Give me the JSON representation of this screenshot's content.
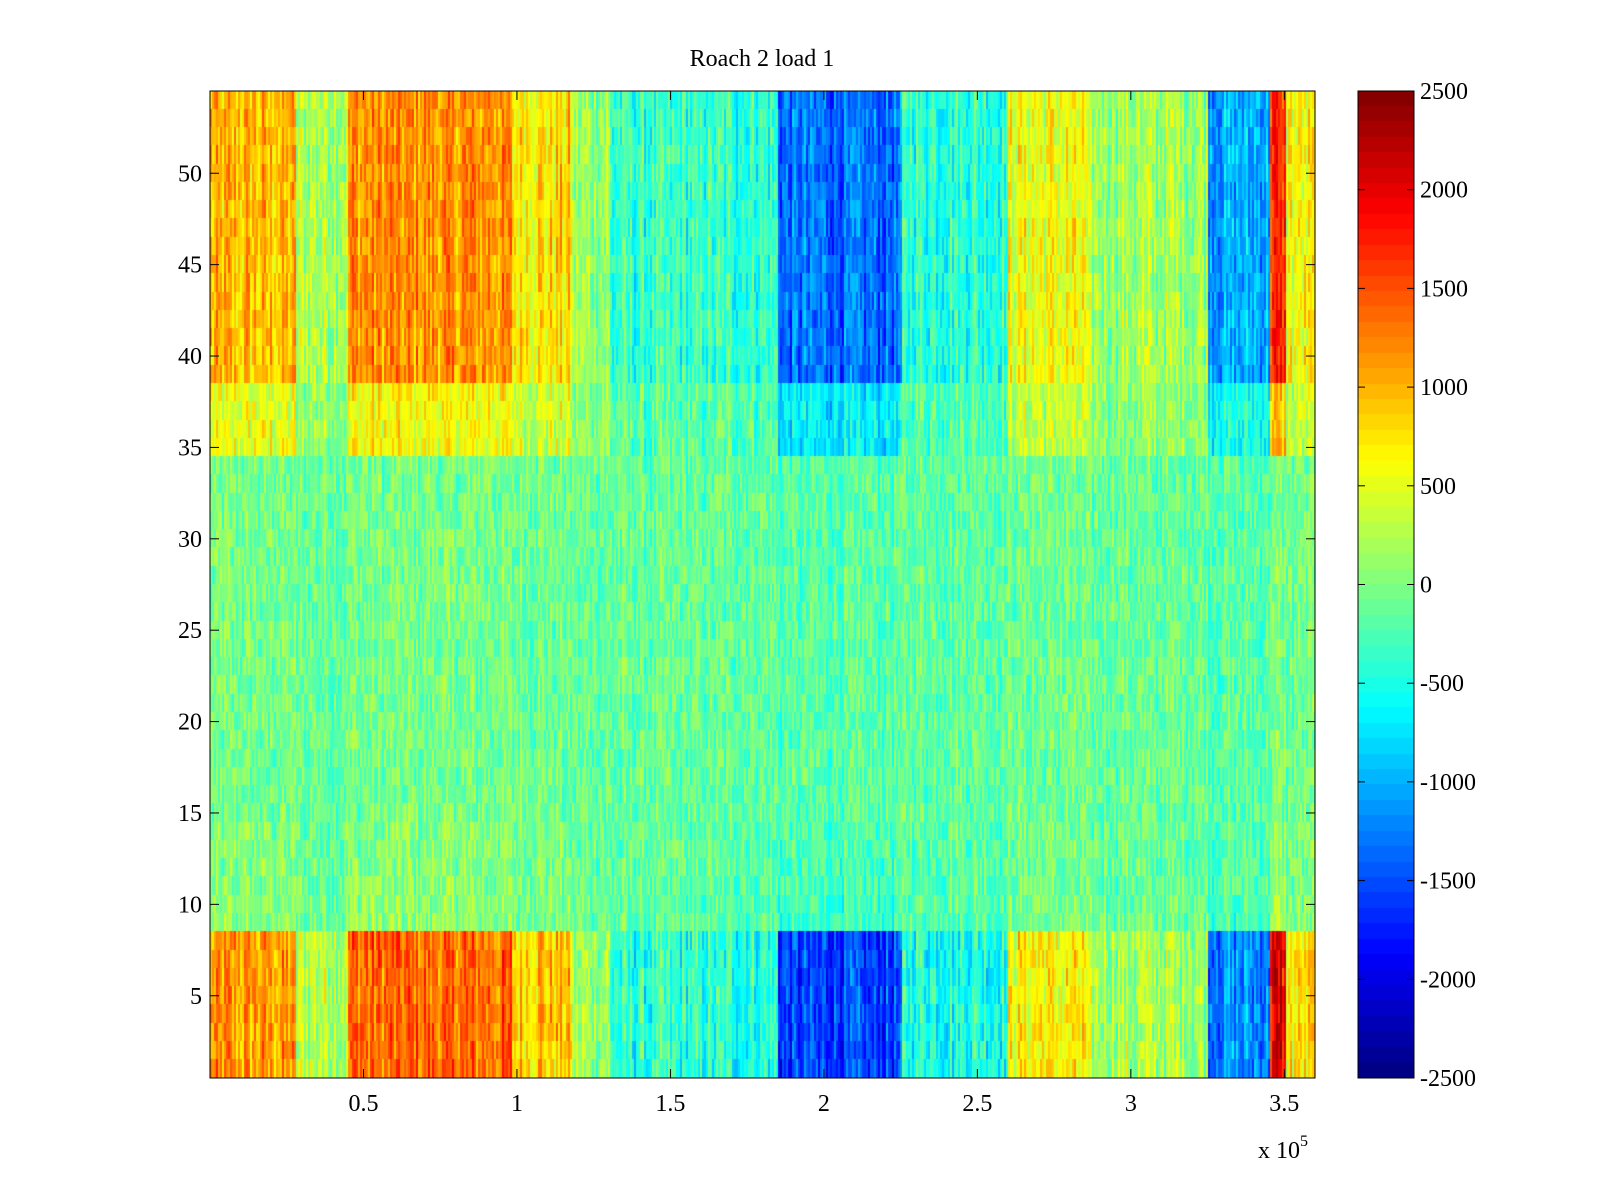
{
  "chart_data": {
    "type": "heatmap",
    "title": "Roach 2 load 1",
    "xlabel": "",
    "ylabel": "",
    "x_multiplier_label": "x 10",
    "x_multiplier_exponent": "5",
    "xlim": [
      0,
      360000
    ],
    "ylim": [
      0.5,
      54.5
    ],
    "x_ticks": [
      50000,
      100000,
      150000,
      200000,
      250000,
      300000,
      350000
    ],
    "x_tick_labels": [
      "0.5",
      "1",
      "1.5",
      "2",
      "2.5",
      "3",
      "3.5"
    ],
    "y_ticks": [
      5,
      10,
      15,
      20,
      25,
      30,
      35,
      40,
      45,
      50
    ],
    "y_tick_labels": [
      "5",
      "10",
      "15",
      "20",
      "25",
      "30",
      "35",
      "40",
      "45",
      "50"
    ],
    "colorbar": {
      "colormap": "jet",
      "clim": [
        -2500,
        2500
      ],
      "ticks": [
        2500,
        2000,
        1500,
        1000,
        500,
        0,
        -500,
        -1000,
        -1500,
        -2000,
        -2500
      ],
      "tick_labels": [
        "2500",
        "2000",
        "1500",
        "1000",
        "500",
        "0",
        "-500",
        "-1000",
        "-1500",
        "-2000",
        "-2500"
      ]
    },
    "rows": 54,
    "column_bands": [
      {
        "x_from": 0,
        "x_to": 28000,
        "value": 1100
      },
      {
        "x_from": 28000,
        "x_to": 45000,
        "value": 300
      },
      {
        "x_from": 45000,
        "x_to": 98000,
        "value": 1350
      },
      {
        "x_from": 98000,
        "x_to": 118000,
        "value": 900
      },
      {
        "x_from": 118000,
        "x_to": 130000,
        "value": 150
      },
      {
        "x_from": 130000,
        "x_to": 185000,
        "value": -450
      },
      {
        "x_from": 185000,
        "x_to": 225000,
        "value": -1600
      },
      {
        "x_from": 225000,
        "x_to": 260000,
        "value": -450
      },
      {
        "x_from": 260000,
        "x_to": 285000,
        "value": 650
      },
      {
        "x_from": 285000,
        "x_to": 325000,
        "value": 200
      },
      {
        "x_from": 325000,
        "x_to": 345000,
        "value": -1200
      },
      {
        "x_from": 345000,
        "x_to": 350000,
        "value": 1900
      },
      {
        "x_from": 350000,
        "x_to": 360000,
        "value": 700
      }
    ],
    "row_band_weights": [
      {
        "y_from": 1,
        "y_to": 9,
        "weight": 1.0
      },
      {
        "y_from": 9,
        "y_to": 11,
        "weight": 0.15
      },
      {
        "y_from": 11,
        "y_to": 15,
        "weight": 0.1
      },
      {
        "y_from": 15,
        "y_to": 35,
        "weight": 0.05
      },
      {
        "y_from": 35,
        "y_to": 39,
        "weight": 0.45
      },
      {
        "y_from": 39,
        "y_to": 55,
        "weight": 0.85
      }
    ]
  }
}
